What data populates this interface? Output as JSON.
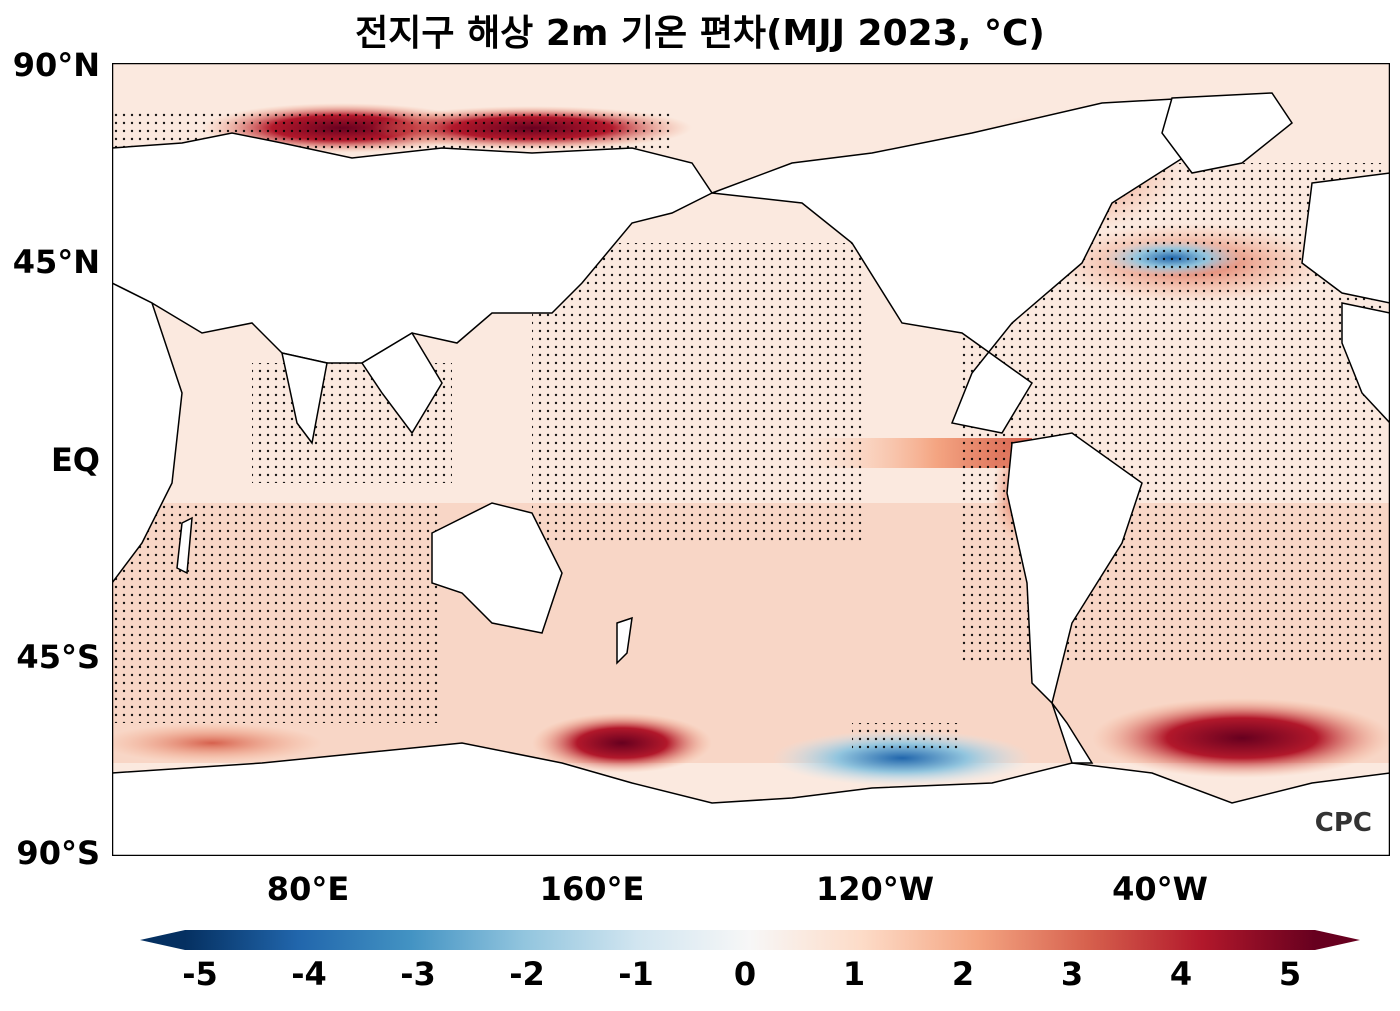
{
  "title": "전지구 해상 2m 기온 편차(MJJ 2023, °C)",
  "latitude_labels": [
    "90°N",
    "45°N",
    "EQ",
    "45°S",
    "90°S"
  ],
  "longitude_labels": [
    "80°E",
    "160°E",
    "120°W",
    "40°W"
  ],
  "colorbar": {
    "ticks": [
      "-5",
      "-4",
      "-3",
      "-2",
      "-1",
      "0",
      "1",
      "2",
      "3",
      "4",
      "5"
    ],
    "min": -5,
    "max": 5,
    "colors": [
      "#053061",
      "#2166ac",
      "#4393c3",
      "#92c5de",
      "#d1e5f0",
      "#f7f7f7",
      "#fddbc7",
      "#f4a582",
      "#d6604d",
      "#b2182b",
      "#67001f"
    ]
  },
  "logo": "CPC",
  "colors": {
    "land": "#ffffff",
    "coast": "#000000"
  }
}
